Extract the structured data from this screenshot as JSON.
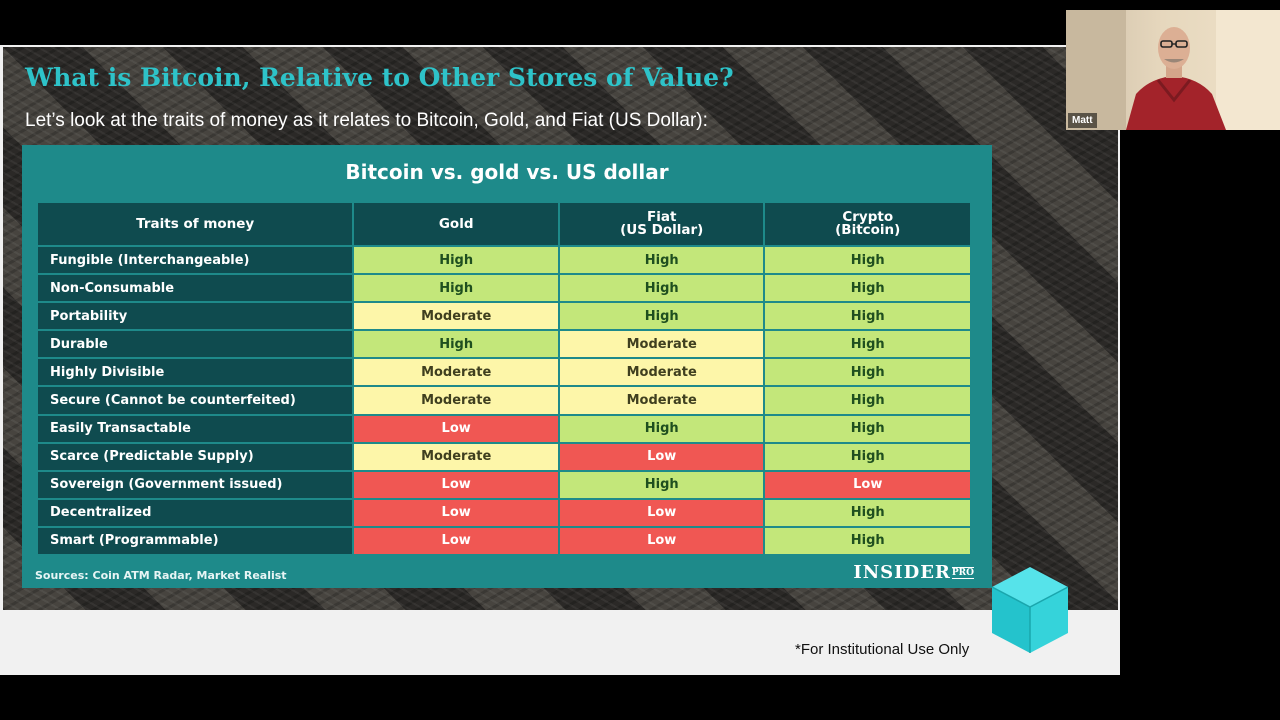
{
  "slide": {
    "title": "What is Bitcoin, Relative to Other Stores of Value?",
    "subtitle": "Let’s look at the traits of money as it relates to Bitcoin, Gold, and Fiat (US Dollar):",
    "footnote": "*For Institutional Use Only"
  },
  "infographic": {
    "title": "Bitcoin vs. gold vs. US dollar",
    "headers": [
      "Traits of money",
      "Gold",
      "Fiat\n(US Dollar)",
      "Crypto\n(Bitcoin)"
    ],
    "rows": [
      {
        "trait": "Fungible (Interchangeable)",
        "gold": "High",
        "fiat": "High",
        "crypto": "High"
      },
      {
        "trait": "Non-Consumable",
        "gold": "High",
        "fiat": "High",
        "crypto": "High"
      },
      {
        "trait": "Portability",
        "gold": "Moderate",
        "fiat": "High",
        "crypto": "High"
      },
      {
        "trait": "Durable",
        "gold": "High",
        "fiat": "Moderate",
        "crypto": "High"
      },
      {
        "trait": "Highly Divisible",
        "gold": "Moderate",
        "fiat": "Moderate",
        "crypto": "High"
      },
      {
        "trait": "Secure (Cannot be counterfeited)",
        "gold": "Moderate",
        "fiat": "Moderate",
        "crypto": "High"
      },
      {
        "trait": "Easily Transactable",
        "gold": "Low",
        "fiat": "High",
        "crypto": "High"
      },
      {
        "trait": "Scarce (Predictable Supply)",
        "gold": "Moderate",
        "fiat": "Low",
        "crypto": "High"
      },
      {
        "trait": "Sovereign (Government issued)",
        "gold": "Low",
        "fiat": "High",
        "crypto": "Low"
      },
      {
        "trait": "Decentralized",
        "gold": "Low",
        "fiat": "Low",
        "crypto": "High"
      },
      {
        "trait": "Smart (Programmable)",
        "gold": "Low",
        "fiat": "Low",
        "crypto": "High"
      }
    ],
    "sources": "Sources: Coin ATM Radar, Market Realist",
    "brand": "INSIDER",
    "brand_suffix": "PRO",
    "colors": {
      "High": "#c3e77a",
      "Moderate": "#fdf6a9",
      "Low": "#f05753",
      "teal": "#1e8a8a"
    }
  },
  "webcam": {
    "participant_name": "Matt"
  },
  "icons": {
    "cube": "cube-icon"
  }
}
